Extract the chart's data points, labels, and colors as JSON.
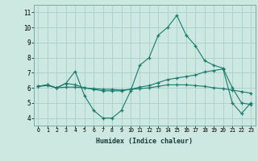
{
  "xlabel": "Humidex (Indice chaleur)",
  "ylabel": "",
  "background_color": "#cce8e0",
  "grid_color": "#aacfc8",
  "line_color": "#1a7a6e",
  "xlim": [
    -0.5,
    23.5
  ],
  "ylim": [
    3.5,
    11.5
  ],
  "xtick_labels": [
    "0",
    "1",
    "2",
    "3",
    "4",
    "5",
    "6",
    "7",
    "8",
    "9",
    "10",
    "11",
    "12",
    "13",
    "14",
    "15",
    "16",
    "17",
    "18",
    "19",
    "20",
    "21",
    "22",
    "23"
  ],
  "ytick_labels": [
    "4",
    "5",
    "6",
    "7",
    "8",
    "9",
    "10",
    "11"
  ],
  "curve1_x": [
    0,
    1,
    2,
    3,
    4,
    5,
    6,
    7,
    8,
    9,
    10,
    11,
    12,
    13,
    14,
    15,
    16,
    17,
    18,
    19,
    20,
    21,
    22,
    23
  ],
  "curve1_y": [
    6.1,
    6.2,
    6.0,
    6.3,
    7.1,
    5.5,
    4.5,
    4.0,
    4.0,
    4.5,
    5.8,
    7.5,
    8.0,
    9.5,
    10.0,
    10.8,
    9.5,
    8.8,
    7.8,
    7.5,
    7.3,
    6.0,
    5.0,
    4.9
  ],
  "curve2_x": [
    0,
    1,
    2,
    3,
    4,
    5,
    6,
    7,
    8,
    9,
    10,
    11,
    12,
    13,
    14,
    15,
    16,
    17,
    18,
    19,
    20,
    21,
    22,
    23
  ],
  "curve2_y": [
    6.1,
    6.15,
    6.0,
    6.05,
    6.05,
    6.0,
    5.95,
    5.9,
    5.9,
    5.85,
    5.9,
    5.95,
    6.0,
    6.1,
    6.2,
    6.2,
    6.2,
    6.15,
    6.1,
    6.0,
    5.95,
    5.85,
    5.75,
    5.65
  ],
  "curve3_x": [
    0,
    1,
    2,
    3,
    4,
    5,
    6,
    7,
    8,
    9,
    10,
    11,
    12,
    13,
    14,
    15,
    16,
    17,
    18,
    19,
    20,
    21,
    22,
    23
  ],
  "curve3_y": [
    6.1,
    6.2,
    6.0,
    6.3,
    6.2,
    6.0,
    5.9,
    5.8,
    5.8,
    5.8,
    5.9,
    6.05,
    6.15,
    6.35,
    6.55,
    6.65,
    6.75,
    6.85,
    7.05,
    7.15,
    7.25,
    5.0,
    4.3,
    5.0
  ]
}
